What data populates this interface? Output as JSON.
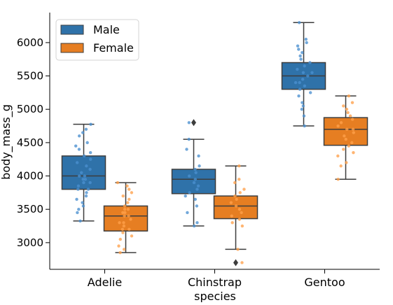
{
  "chart_data": {
    "type": "boxplot",
    "title": "",
    "xlabel": "species",
    "ylabel": "body_mass_g",
    "categories": [
      "Adelie",
      "Chinstrap",
      "Gentoo"
    ],
    "ylim": [
      2600,
      6450
    ],
    "yticks": [
      3000,
      3500,
      4000,
      4500,
      5000,
      5500,
      6000
    ],
    "grid": false,
    "legend_position": "upper-left",
    "overlay": "jittered strip points",
    "series": [
      {
        "name": "Male",
        "color": "#2f72a9",
        "point_color": "#4a90d0",
        "boxes": [
          {
            "min": 3325,
            "q1": 3800,
            "median": 4000,
            "q3": 4300,
            "max": 4775,
            "outliers": []
          },
          {
            "min": 3250,
            "q1": 3735,
            "median": 3950,
            "q3": 4100,
            "max": 4550,
            "outliers": [
              4800
            ]
          },
          {
            "min": 4750,
            "q1": 5300,
            "median": 5500,
            "q3": 5700,
            "max": 6300,
            "outliers": []
          }
        ],
        "points": [
          [
            3325,
            3450,
            3500,
            3550,
            3600,
            3650,
            3700,
            3750,
            3800,
            3800,
            3850,
            3900,
            3900,
            3950,
            3950,
            4000,
            4000,
            4050,
            4100,
            4150,
            4200,
            4250,
            4300,
            4350,
            4400,
            4450,
            4500,
            4600,
            4650,
            4700,
            4775
          ],
          [
            3250,
            3300,
            3450,
            3550,
            3650,
            3700,
            3750,
            3800,
            3850,
            3900,
            3950,
            4000,
            4050,
            4100,
            4150,
            4300,
            4400,
            4550,
            4800
          ],
          [
            4750,
            4900,
            5000,
            5050,
            5100,
            5200,
            5250,
            5300,
            5350,
            5400,
            5400,
            5450,
            5500,
            5550,
            5550,
            5600,
            5650,
            5700,
            5750,
            5800,
            5850,
            5900,
            5950,
            6000,
            6050,
            6300
          ]
        ]
      },
      {
        "name": "Female",
        "color": "#e67e22",
        "point_color": "#ffa04a",
        "boxes": [
          {
            "min": 2850,
            "q1": 3175,
            "median": 3400,
            "q3": 3550,
            "max": 3900,
            "outliers": []
          },
          {
            "min": 2900,
            "q1": 3360,
            "median": 3550,
            "q3": 3700,
            "max": 4150,
            "outliers": [
              2700
            ]
          },
          {
            "min": 3950,
            "q1": 4460,
            "median": 4700,
            "q3": 4875,
            "max": 5200,
            "outliers": []
          }
        ],
        "points": [
          [
            2850,
            2900,
            2950,
            3050,
            3100,
            3150,
            3200,
            3200,
            3250,
            3300,
            3300,
            3350,
            3400,
            3400,
            3450,
            3450,
            3500,
            3500,
            3550,
            3600,
            3650,
            3700,
            3750,
            3800,
            3850,
            3900
          ],
          [
            2700,
            2900,
            3250,
            3300,
            3350,
            3400,
            3450,
            3500,
            3550,
            3600,
            3650,
            3700,
            3750,
            3800,
            3900,
            3950,
            4150
          ],
          [
            3950,
            4150,
            4200,
            4300,
            4350,
            4400,
            4450,
            4500,
            4550,
            4600,
            4650,
            4700,
            4700,
            4750,
            4800,
            4850,
            4900,
            4950,
            5000,
            5050,
            5100,
            5200
          ]
        ]
      }
    ]
  }
}
